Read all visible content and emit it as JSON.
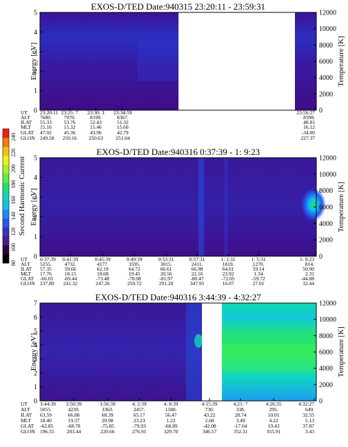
{
  "colorbar": {
    "label": "Second Harmonic Current",
    "ticks": [
      "240",
      "220",
      "200",
      "180",
      "160",
      "140",
      "120",
      "100",
      "80"
    ],
    "colors": [
      "#000000",
      "#2a0a3c",
      "#4b1a8a",
      "#3a2ec8",
      "#2458f0",
      "#1c8cf4",
      "#12c0e8",
      "#10d8b0",
      "#20e070",
      "#5cf040",
      "#a8f020",
      "#f0f010",
      "#f8c008",
      "#f87808",
      "#f02010"
    ]
  },
  "chart_data": [
    {
      "type": "heatmap",
      "title": "EXOS-D/TED   Date:940315  23:20:11 - 23:59:31",
      "ylabel": "Energy [eV]",
      "ylabel_right": "Temperature [K]",
      "ylim": [
        0,
        5
      ],
      "ylim_right": [
        0,
        12000
      ],
      "yticks": [
        "0",
        "1",
        "2",
        "3",
        "4",
        "5"
      ],
      "yticks_right": [
        "0",
        "2000",
        "4000",
        "6000",
        "8000",
        "10000",
        "12000"
      ],
      "data_gaps": [
        "between 23:34:59 and 23:56:27"
      ],
      "ephemeris": {
        "row_labels": [
          "UT",
          "ALT",
          "ILAT",
          "MLT",
          "GLAT",
          "GLON"
        ],
        "columns": [
          [
            "23:20:11",
            "7680.",
            "55.33",
            "15.16",
            "47.02",
            "249.58"
          ],
          [
            "23:25: 7",
            "7970.",
            "53.76",
            "15.32",
            "45.36",
            "250.16"
          ],
          [
            "23:30: 3",
            "8199.",
            "52.43",
            "15.46",
            "43.96",
            "250.63"
          ],
          [
            "23:34:59",
            "8367.",
            "51.32",
            "15.60",
            "42.79",
            "251.04"
          ],
          [
            "23:56:27",
            "8398.",
            "48.81",
            "16.12",
            "-34.00",
            "227.37"
          ]
        ]
      }
    },
    {
      "type": "heatmap",
      "title": "EXOS-D/TED   Date:940316  0:37:39 - 1: 9:23",
      "ylabel": "Energy [eV]",
      "ylabel_right": "Temperature [K]",
      "ylim": [
        0,
        5
      ],
      "ylim_right": [
        0,
        12000
      ],
      "yticks": [
        "0",
        "1",
        "2",
        "3",
        "4",
        "5"
      ],
      "yticks_right": [
        "0",
        "2000",
        "4000",
        "6000",
        "8000",
        "10000",
        "12000"
      ],
      "ephemeris": {
        "row_labels": [
          "UT",
          "ALT",
          "ILAT",
          "MLT",
          "GLAT",
          "GLON"
        ],
        "columns": [
          [
            "0:37:39",
            "5255.",
            "57.35",
            "17.76",
            "-66.05",
            "237.89"
          ],
          [
            "0:41:39",
            "4732.",
            "59.66",
            "18.15",
            "-69.44",
            "241.32"
          ],
          [
            "0:45:39",
            "4177.",
            "62.19",
            "18.68",
            "-73.48",
            "247.26"
          ],
          [
            "0:49:39",
            "3595.",
            "64.72",
            "19.45",
            "-78.08",
            "259.72"
          ],
          [
            "0:53:31",
            "3015.",
            "66.61",
            "20.56",
            "-81.97",
            "291.20"
          ],
          [
            "0:57:31",
            "2411.",
            "66.98",
            "22.16",
            "-80.47",
            "347.95"
          ],
          [
            "1: 1:31",
            "1819.",
            "64.61",
            "23.92",
            "-72.05",
            "16.07"
          ],
          [
            "1: 5:31",
            "1270.",
            "59.14",
            "1.34",
            "-59.72",
            "27.01"
          ],
          [
            "1: 9:23",
            "814.",
            "50.90",
            "2.31",
            "-44.88",
            "32.44"
          ]
        ]
      }
    },
    {
      "type": "heatmap",
      "title": "EXOS-D/TED   Date:940316  3:44:39 - 4:32:27",
      "ylabel": "Energy [eV]",
      "ylabel_right": "Temperature [K]",
      "ylim": [
        0,
        7
      ],
      "ylim_right": [
        0,
        12000
      ],
      "yticks": [
        "0",
        "1",
        "2",
        "3",
        "4",
        "5",
        "6",
        "7"
      ],
      "yticks_right": [
        "0",
        "2000",
        "4000",
        "6000",
        "8000",
        "10000",
        "12000"
      ],
      "data_gaps": [
        "between 4: 8:39 and 4:15:39"
      ],
      "ephemeris": {
        "row_labels": [
          "UT",
          "ALT",
          "ILAT",
          "MLT",
          "GLAT",
          "GLON"
        ],
        "columns": [
          [
            "3:44:39",
            "5055.",
            "63.59",
            "18.40",
            "-62.85",
            "196.55"
          ],
          [
            "3:50:39",
            "4239.",
            "66.88",
            "19.37",
            "-68.78",
            "203.44"
          ],
          [
            "3:56:39",
            "3363.",
            "68.39",
            "20.98",
            "-75.85",
            "220.66"
          ],
          [
            "4: 2:39",
            "2457.",
            "65.17",
            "23.23",
            "-79.93",
            "276.91"
          ],
          [
            "4: 8:39",
            "1580.",
            "56.47",
            "1.22",
            "-68.89",
            "329.70"
          ],
          [
            "4:15:39",
            "730.",
            "43.22",
            "2.68",
            "-42.08",
            "346.57"
          ],
          [
            "4:21: 7",
            "338.",
            "28.74",
            "3.49",
            "-17.64",
            "352.31"
          ],
          [
            "4:26:35",
            "295.",
            "10.01",
            "4.22",
            "19.43",
            "355.91"
          ],
          [
            "4:32:27",
            "649.",
            "32.55",
            "5.13",
            "37.87",
            "3.43"
          ]
        ]
      }
    }
  ]
}
